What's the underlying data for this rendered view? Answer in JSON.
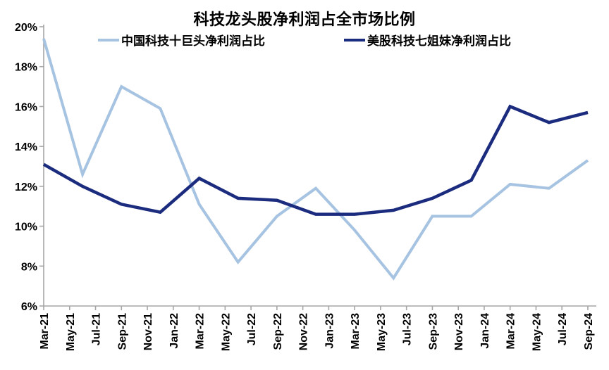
{
  "chart_data": {
    "type": "line",
    "title": "科技龙头股净利润占全市场比例",
    "xlabel": "",
    "ylabel": "",
    "ylim": [
      6,
      20
    ],
    "y_tick_step": 2,
    "y_tick_labels": [
      "20%",
      "18%",
      "16%",
      "14%",
      "12%",
      "10%",
      "8%",
      "6%"
    ],
    "x_tick_labels": [
      "Mar-21",
      "May-21",
      "Jul-21",
      "Sep-21",
      "Nov-21",
      "Jan-22",
      "Mar-22",
      "May-22",
      "Jul-22",
      "Sep-22",
      "Nov-22",
      "Jan-23",
      "Mar-23",
      "May-23",
      "Jul-23",
      "Sep-23",
      "Nov-23",
      "Jan-24",
      "Mar-24",
      "May-24",
      "Jul-24",
      "Sep-24"
    ],
    "grid": false,
    "legend_position": "top",
    "point_quarters": [
      "Mar-21",
      "Jun-21",
      "Sep-21",
      "Dec-21",
      "Mar-22",
      "Jun-22",
      "Sep-22",
      "Dec-22",
      "Mar-23",
      "Jun-23",
      "Sep-23",
      "Dec-23",
      "Mar-24",
      "Jun-24",
      "Sep-24"
    ],
    "series": [
      {
        "name": "中国科技十巨头净利润占比",
        "color": "#A6C3E2",
        "values": [
          19.4,
          12.6,
          17.0,
          15.9,
          11.1,
          8.2,
          10.5,
          11.9,
          9.8,
          7.4,
          10.5,
          10.5,
          12.1,
          11.9,
          13.3
        ]
      },
      {
        "name": "美股科技七姐妹净利润占比",
        "color": "#1B2B7E",
        "values": [
          13.1,
          12.0,
          11.1,
          10.7,
          12.4,
          11.4,
          11.3,
          10.6,
          10.6,
          10.8,
          11.4,
          12.3,
          16.0,
          15.2,
          15.7
        ]
      }
    ],
    "axis_color": "#A6A6A6",
    "text_color": "#000000"
  }
}
